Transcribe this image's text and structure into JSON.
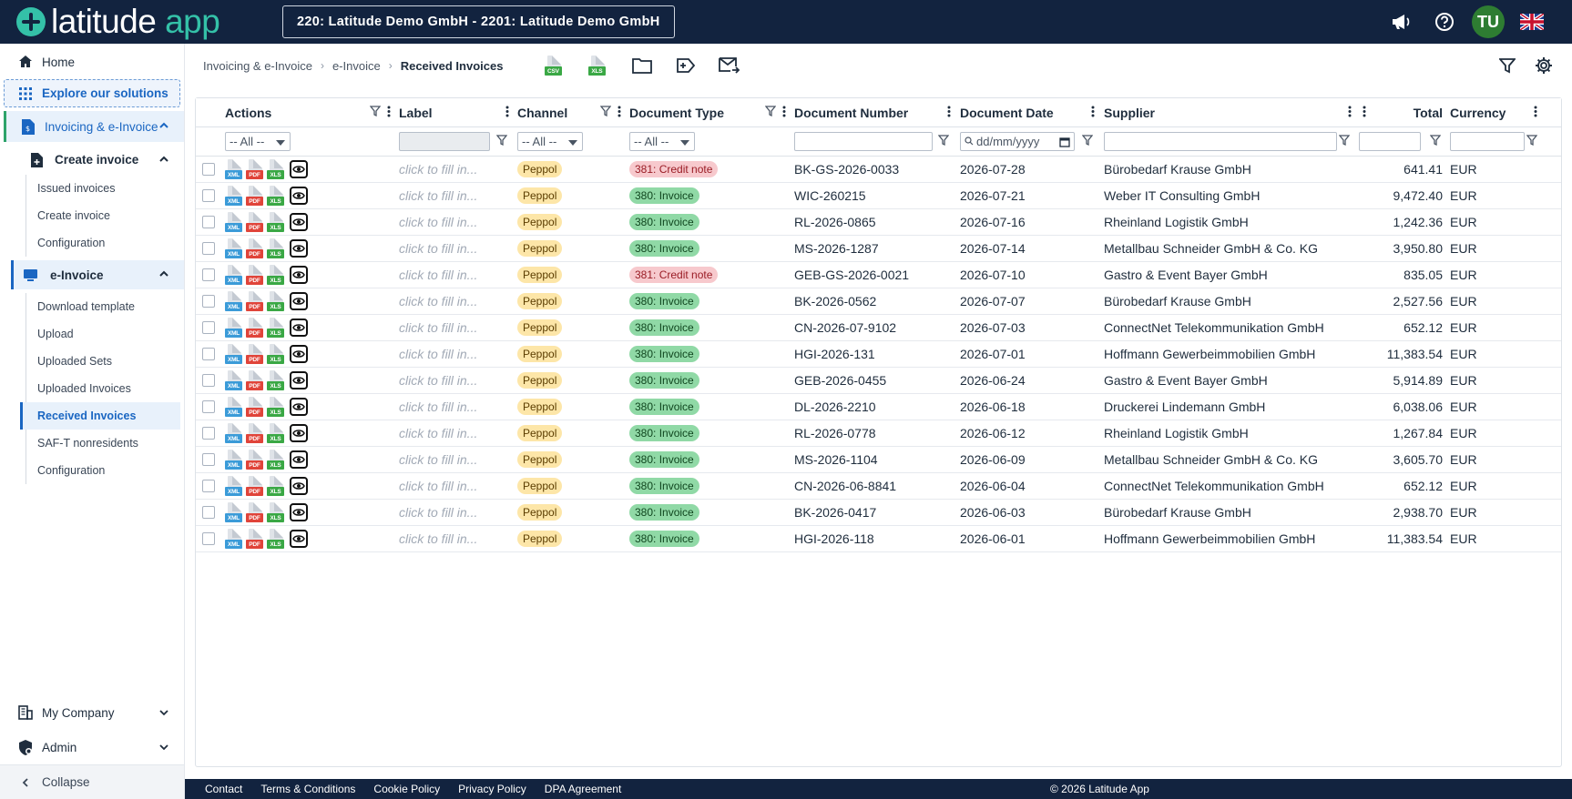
{
  "app": {
    "logo_main": "latitude",
    "logo_accent": "app",
    "tenant": "220: Latitude Demo GmbH - 2201: Latitude Demo GmbH",
    "avatar": "TU"
  },
  "topbar_icons": [
    "megaphone-icon",
    "help-icon",
    "avatar",
    "flag-uk-icon"
  ],
  "sidebar": {
    "home": "Home",
    "explore": "Explore our solutions",
    "invoicing": "Invoicing & e-Invoice",
    "create_invoice_group": "Create invoice",
    "create_items": [
      "Issued invoices",
      "Create invoice",
      "Configuration"
    ],
    "einvoice_group": "e-Invoice",
    "einvoice_items": [
      "Download template",
      "Upload",
      "Uploaded Sets",
      "Uploaded Invoices",
      "Received Invoices",
      "SAF-T nonresidents",
      "Configuration"
    ],
    "my_company": "My Company",
    "admin": "Admin",
    "collapse": "Collapse"
  },
  "breadcrumb": {
    "level1": "Invoicing & e-Invoice",
    "level2": "e-Invoice",
    "current": "Received Invoices"
  },
  "toolbar_icons": {
    "csv": "CSV",
    "xls": "XLS"
  },
  "table": {
    "columns": {
      "actions": "Actions",
      "label": "Label",
      "channel": "Channel",
      "doctype": "Document Type",
      "docnum": "Document Number",
      "docdate": "Document Date",
      "supplier": "Supplier",
      "total": "Total",
      "currency": "Currency"
    },
    "filters": {
      "actions": "-- All --",
      "channel": "-- All --",
      "doctype": "-- All --",
      "date_placeholder": "dd/mm/yyyy"
    },
    "label_placeholder": "click to fill in...",
    "file_labels": {
      "xml": "XML",
      "pdf": "PDF",
      "xls": "XLS"
    },
    "rows": [
      {
        "channel": "Peppol",
        "doctype": "381: Credit note",
        "type": "cn",
        "docnum": "BK-GS-2026-0033",
        "date": "2026-07-28",
        "supplier": "Bürobedarf Krause GmbH",
        "total": "641.41",
        "currency": "EUR"
      },
      {
        "channel": "Peppol",
        "doctype": "380: Invoice",
        "type": "inv",
        "docnum": "WIC-260215",
        "date": "2026-07-21",
        "supplier": "Weber IT Consulting GmbH",
        "total": "9,472.40",
        "currency": "EUR"
      },
      {
        "channel": "Peppol",
        "doctype": "380: Invoice",
        "type": "inv",
        "docnum": "RL-2026-0865",
        "date": "2026-07-16",
        "supplier": "Rheinland Logistik GmbH",
        "total": "1,242.36",
        "currency": "EUR"
      },
      {
        "channel": "Peppol",
        "doctype": "380: Invoice",
        "type": "inv",
        "docnum": "MS-2026-1287",
        "date": "2026-07-14",
        "supplier": "Metallbau Schneider GmbH & Co. KG",
        "total": "3,950.80",
        "currency": "EUR"
      },
      {
        "channel": "Peppol",
        "doctype": "381: Credit note",
        "type": "cn",
        "docnum": "GEB-GS-2026-0021",
        "date": "2026-07-10",
        "supplier": "Gastro & Event Bayer GmbH",
        "total": "835.05",
        "currency": "EUR"
      },
      {
        "channel": "Peppol",
        "doctype": "380: Invoice",
        "type": "inv",
        "docnum": "BK-2026-0562",
        "date": "2026-07-07",
        "supplier": "Bürobedarf Krause GmbH",
        "total": "2,527.56",
        "currency": "EUR"
      },
      {
        "channel": "Peppol",
        "doctype": "380: Invoice",
        "type": "inv",
        "docnum": "CN-2026-07-9102",
        "date": "2026-07-03",
        "supplier": "ConnectNet Telekommunikation GmbH",
        "total": "652.12",
        "currency": "EUR"
      },
      {
        "channel": "Peppol",
        "doctype": "380: Invoice",
        "type": "inv",
        "docnum": "HGI-2026-131",
        "date": "2026-07-01",
        "supplier": "Hoffmann Gewerbeimmobilien GmbH",
        "total": "11,383.54",
        "currency": "EUR"
      },
      {
        "channel": "Peppol",
        "doctype": "380: Invoice",
        "type": "inv",
        "docnum": "GEB-2026-0455",
        "date": "2026-06-24",
        "supplier": "Gastro & Event Bayer GmbH",
        "total": "5,914.89",
        "currency": "EUR"
      },
      {
        "channel": "Peppol",
        "doctype": "380: Invoice",
        "type": "inv",
        "docnum": "DL-2026-2210",
        "date": "2026-06-18",
        "supplier": "Druckerei Lindemann GmbH",
        "total": "6,038.06",
        "currency": "EUR"
      },
      {
        "channel": "Peppol",
        "doctype": "380: Invoice",
        "type": "inv",
        "docnum": "RL-2026-0778",
        "date": "2026-06-12",
        "supplier": "Rheinland Logistik GmbH",
        "total": "1,267.84",
        "currency": "EUR"
      },
      {
        "channel": "Peppol",
        "doctype": "380: Invoice",
        "type": "inv",
        "docnum": "MS-2026-1104",
        "date": "2026-06-09",
        "supplier": "Metallbau Schneider GmbH & Co. KG",
        "total": "3,605.70",
        "currency": "EUR"
      },
      {
        "channel": "Peppol",
        "doctype": "380: Invoice",
        "type": "inv",
        "docnum": "CN-2026-06-8841",
        "date": "2026-06-04",
        "supplier": "ConnectNet Telekommunikation GmbH",
        "total": "652.12",
        "currency": "EUR"
      },
      {
        "channel": "Peppol",
        "doctype": "380: Invoice",
        "type": "inv",
        "docnum": "BK-2026-0417",
        "date": "2026-06-03",
        "supplier": "Bürobedarf Krause GmbH",
        "total": "2,938.70",
        "currency": "EUR"
      },
      {
        "channel": "Peppol",
        "doctype": "380: Invoice",
        "type": "inv",
        "docnum": "HGI-2026-118",
        "date": "2026-06-01",
        "supplier": "Hoffmann Gewerbeimmobilien GmbH",
        "total": "11,383.54",
        "currency": "EUR"
      }
    ]
  },
  "footer": {
    "links": [
      "Contact",
      "Terms & Conditions",
      "Cookie Policy",
      "Privacy Policy",
      "DPA Agreement"
    ],
    "copyright": "© 2026 Latitude App"
  },
  "colors": {
    "topbar": "#12233f",
    "accent": "#34c1a8",
    "link": "#1a66c2",
    "invoice_tag": "#90d9a6",
    "credit_tag": "#f7c9cd",
    "peppol_tag": "#fde6a8"
  }
}
